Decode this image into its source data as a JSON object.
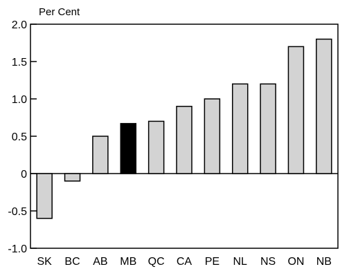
{
  "chart_data": {
    "type": "bar",
    "ylabel": "Per Cent",
    "categories": [
      "SK",
      "BC",
      "AB",
      "MB",
      "QC",
      "CA",
      "PE",
      "NL",
      "NS",
      "ON",
      "NB"
    ],
    "values": [
      -0.6,
      -0.1,
      0.5,
      0.67,
      0.7,
      0.9,
      1.0,
      1.2,
      1.2,
      1.7,
      1.8
    ],
    "highlight": "MB",
    "ylim": [
      -1.0,
      2.0
    ],
    "yticks": [
      -1.0,
      -0.5,
      0,
      0.5,
      1.0,
      1.5,
      2.0
    ],
    "ytick_labels": [
      "-1.0",
      "-0.5",
      "0",
      "0.5",
      "1.0",
      "1.5",
      "2.0"
    ],
    "grid": false,
    "colors": {
      "bar": "#d3d3d3",
      "highlight": "#000000",
      "stroke": "#000000"
    }
  }
}
